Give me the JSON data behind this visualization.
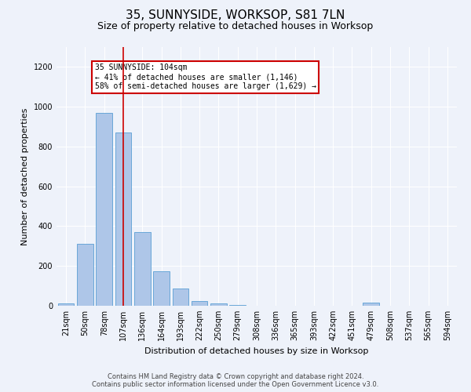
{
  "title": "35, SUNNYSIDE, WORKSOP, S81 7LN",
  "subtitle": "Size of property relative to detached houses in Worksop",
  "xlabel": "Distribution of detached houses by size in Worksop",
  "ylabel": "Number of detached properties",
  "categories": [
    "21sqm",
    "50sqm",
    "78sqm",
    "107sqm",
    "136sqm",
    "164sqm",
    "193sqm",
    "222sqm",
    "250sqm",
    "279sqm",
    "308sqm",
    "336sqm",
    "365sqm",
    "393sqm",
    "422sqm",
    "451sqm",
    "479sqm",
    "508sqm",
    "537sqm",
    "565sqm",
    "594sqm"
  ],
  "values": [
    10,
    310,
    970,
    870,
    370,
    175,
    85,
    25,
    10,
    2,
    1,
    1,
    1,
    0,
    0,
    0,
    15,
    0,
    0,
    0,
    0
  ],
  "bar_color": "#aec6e8",
  "bar_edge_color": "#5a9fd4",
  "annotation_text": "35 SUNNYSIDE: 104sqm\n← 41% of detached houses are smaller (1,146)\n58% of semi-detached houses are larger (1,629) →",
  "annotation_box_color": "#ffffff",
  "annotation_box_edge": "#cc0000",
  "marker_line_color": "#cc0000",
  "footer_line1": "Contains HM Land Registry data © Crown copyright and database right 2024.",
  "footer_line2": "Contains public sector information licensed under the Open Government Licence v3.0.",
  "ylim": [
    0,
    1300
  ],
  "background_color": "#eef2fa",
  "grid_color": "#ffffff",
  "title_fontsize": 11,
  "subtitle_fontsize": 9,
  "ylabel_fontsize": 8,
  "xlabel_fontsize": 8,
  "tick_fontsize": 7,
  "annotation_fontsize": 7,
  "footer_fontsize": 6
}
